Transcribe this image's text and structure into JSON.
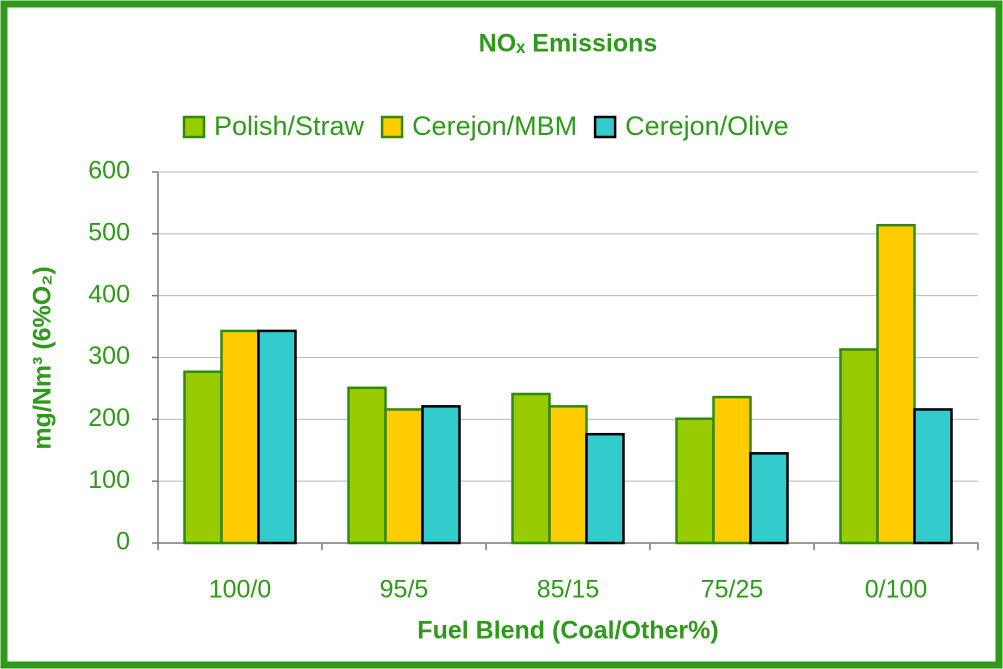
{
  "chart_data": {
    "type": "bar",
    "title": "NOₓ Emissions",
    "x_label": "Fuel Blend (Coal/Other%)",
    "y_label": "mg/Nm³ (6%O₂)",
    "categories": [
      "100/0",
      "95/5",
      "85/15",
      "75/25",
      "0/100"
    ],
    "series": [
      {
        "name": "Polish/Straw",
        "color": "#99cc00",
        "edgecolor": "#2f8a10",
        "values": [
          277,
          251,
          241,
          201,
          313
        ]
      },
      {
        "name": "Cerejon/MBM",
        "color": "#ffcc00",
        "edgecolor": "#2f8a10",
        "values": [
          343,
          216,
          221,
          236,
          514
        ]
      },
      {
        "name": "Cerejon/Olive",
        "color": "#33cccc",
        "edgecolor": "#000000",
        "values": [
          343,
          221,
          176,
          145,
          216
        ]
      }
    ],
    "ylim": [
      0,
      600
    ],
    "yticks": [
      0,
      100,
      200,
      300,
      400,
      500,
      600
    ],
    "grid": true,
    "legend": "top"
  }
}
